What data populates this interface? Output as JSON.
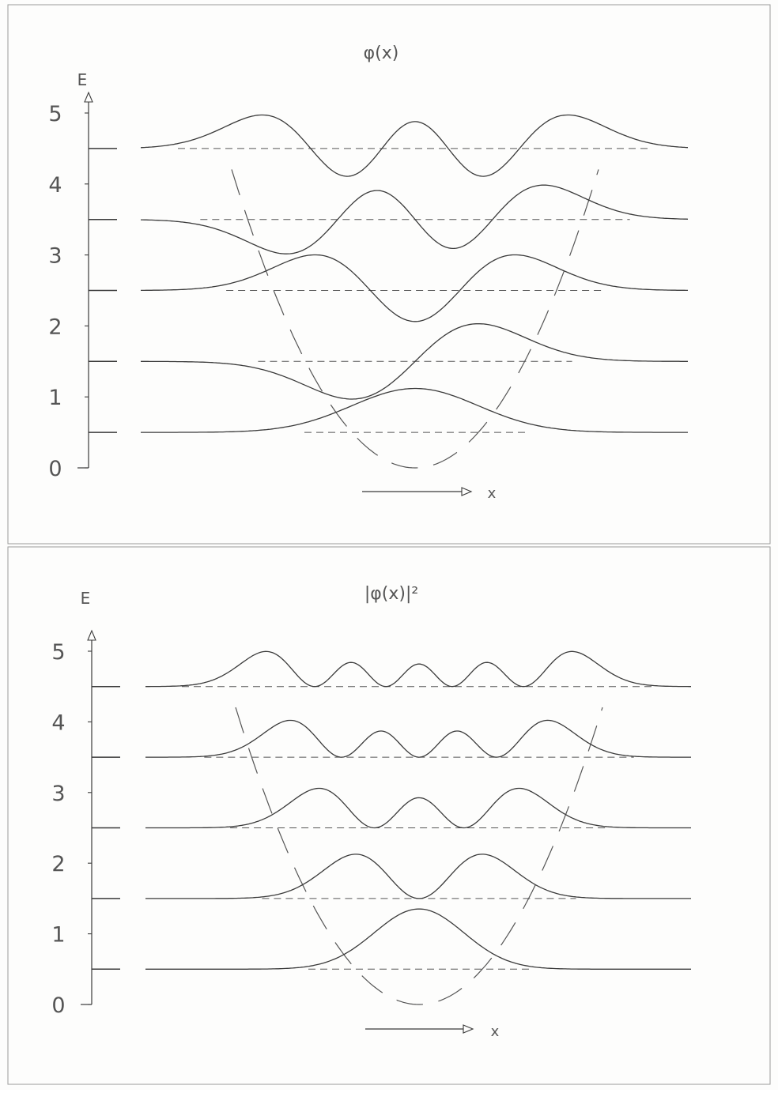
{
  "chart_data": [
    {
      "type": "line",
      "title": "φ(x)",
      "ylabel": "E",
      "xlabel": "x",
      "ylim": [
        0,
        5
      ],
      "yticks": [
        "0",
        "1",
        "2",
        "3",
        "4",
        "5"
      ],
      "energy_levels": [
        0.5,
        1.5,
        2.5,
        3.5,
        4.5
      ],
      "potential": "parabolic, dashed",
      "series": [
        {
          "n": 0,
          "baseline": 0.5,
          "quantity": "wavefunction"
        },
        {
          "n": 1,
          "baseline": 1.5,
          "quantity": "wavefunction"
        },
        {
          "n": 2,
          "baseline": 2.5,
          "quantity": "wavefunction"
        },
        {
          "n": 3,
          "baseline": 3.5,
          "quantity": "wavefunction"
        },
        {
          "n": 4,
          "baseline": 4.5,
          "quantity": "wavefunction"
        }
      ]
    },
    {
      "type": "line",
      "title": "|φ(x)|²",
      "ylabel": "E",
      "xlabel": "x",
      "ylim": [
        0,
        5
      ],
      "yticks": [
        "0",
        "1",
        "2",
        "3",
        "4",
        "5"
      ],
      "energy_levels": [
        0.5,
        1.5,
        2.5,
        3.5,
        4.5
      ],
      "potential": "parabolic, dashed",
      "series": [
        {
          "n": 0,
          "baseline": 0.5,
          "quantity": "probability density"
        },
        {
          "n": 1,
          "baseline": 1.5,
          "quantity": "probability density"
        },
        {
          "n": 2,
          "baseline": 2.5,
          "quantity": "probability density"
        },
        {
          "n": 3,
          "baseline": 3.5,
          "quantity": "probability density"
        },
        {
          "n": 4,
          "baseline": 4.5,
          "quantity": "probability density"
        }
      ]
    }
  ],
  "colors": {
    "ink": "#3a3a3a",
    "dashed": "#555555",
    "frame": "#9a9a9a"
  }
}
